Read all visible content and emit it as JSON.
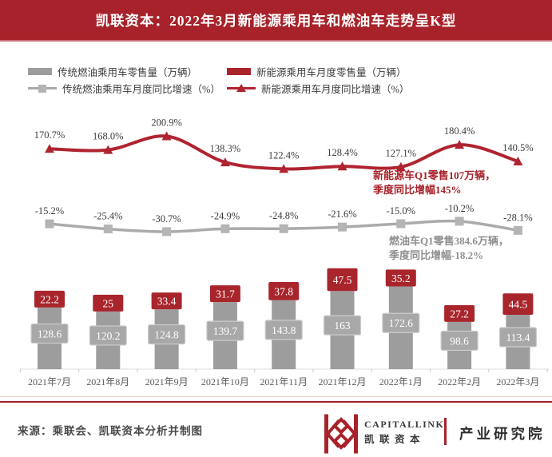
{
  "title": "凯联资本：2022年3月新能源乘用车和燃油车走势呈K型",
  "legend": {
    "items": [
      {
        "label": "传统燃油乘用车零售量（万辆）",
        "swatch": "gray-bar"
      },
      {
        "label": "新能源乘用车月度零售量（万辆）",
        "swatch": "red-bar"
      },
      {
        "label": "传统燃油乘用车月度同比增速（%）",
        "swatch": "gray-line"
      },
      {
        "label": "新能源乘用车月度同比增速（%）",
        "swatch": "red-line"
      }
    ]
  },
  "annotations": {
    "nev_line1": "新能源车Q1零售107万辆，",
    "nev_line2": "季度同比增幅145%",
    "fuel_line1": "燃油车Q1零售384.6万辆，",
    "fuel_line2": "季度同比增幅-18.2%"
  },
  "chart_data": {
    "type": "bar",
    "subtype": "stacked-bar with two YoY growth lines (combo chart)",
    "categories": [
      "2021年7月",
      "2021年8月",
      "2021年9月",
      "2021年10月",
      "2021年11月",
      "2021年12月",
      "2022年1月",
      "2022年2月",
      "2022年3月"
    ],
    "series": [
      {
        "name": "传统燃油乘用车零售量（万辆）",
        "type": "bar",
        "role": "fuel-volume",
        "color": "#9D9D9D",
        "values": [
          128.6,
          120.2,
          124.8,
          139.7,
          143.8,
          163,
          172.6,
          98.6,
          113.4
        ],
        "labels": [
          "128.6",
          "120.2",
          "124.8",
          "139.7",
          "143.8",
          "163",
          "172.6",
          "98.6",
          "113.4"
        ]
      },
      {
        "name": "新能源乘用车月度零售量（万辆）",
        "type": "bar",
        "role": "nev-volume",
        "color": "#A9252C",
        "values": [
          22.2,
          25,
          33.4,
          31.7,
          37.8,
          47.5,
          35.2,
          27.2,
          44.5
        ],
        "labels": [
          "22.2",
          "25",
          "33.4",
          "31.7",
          "37.8",
          "47.5",
          "35.2",
          "27.2",
          "44.5"
        ]
      },
      {
        "name": "传统燃油乘用车月度同比增速（%）",
        "type": "line",
        "role": "fuel-yoy",
        "color": "#ABABAB",
        "values": [
          -15.2,
          -25.4,
          -30.7,
          -24.9,
          -24.8,
          -21.6,
          -15.0,
          -10.2,
          -28.1
        ],
        "labels": [
          "-15.2%",
          "-25.4%",
          "-30.7%",
          "-24.9%",
          "-24.8%",
          "-21.6%",
          "-15.0%",
          "-10.2%",
          "-28.1%"
        ]
      },
      {
        "name": "新能源乘用车月度同比增速（%）",
        "type": "line",
        "role": "nev-yoy",
        "color": "#AF2430",
        "values": [
          170.7,
          168.0,
          200.9,
          138.3,
          122.4,
          128.4,
          127.1,
          180.4,
          140.5
        ],
        "labels": [
          "170.7%",
          "168.0%",
          "200.9%",
          "138.3%",
          "122.4%",
          "128.4%",
          "127.1%",
          "180.4%",
          "140.5%"
        ]
      }
    ],
    "legend_position": "top",
    "grid": false
  },
  "footer": {
    "source": "来源：乘联会、凯联资本分析并制图",
    "logo_en": "CAPITALLINK",
    "logo_cn": "凯联资本",
    "org": "产业研究院"
  },
  "colors": {
    "brand_red": "#A7222A",
    "bar_red": "#A9252C",
    "line_red": "#AF2430",
    "bar_gray": "#9D9D9D",
    "line_gray": "#ABABAB",
    "badge_gray": "#A8A8A8",
    "annotation_gray": "#8F8F8F",
    "label_dark": "#3C3C3C"
  }
}
